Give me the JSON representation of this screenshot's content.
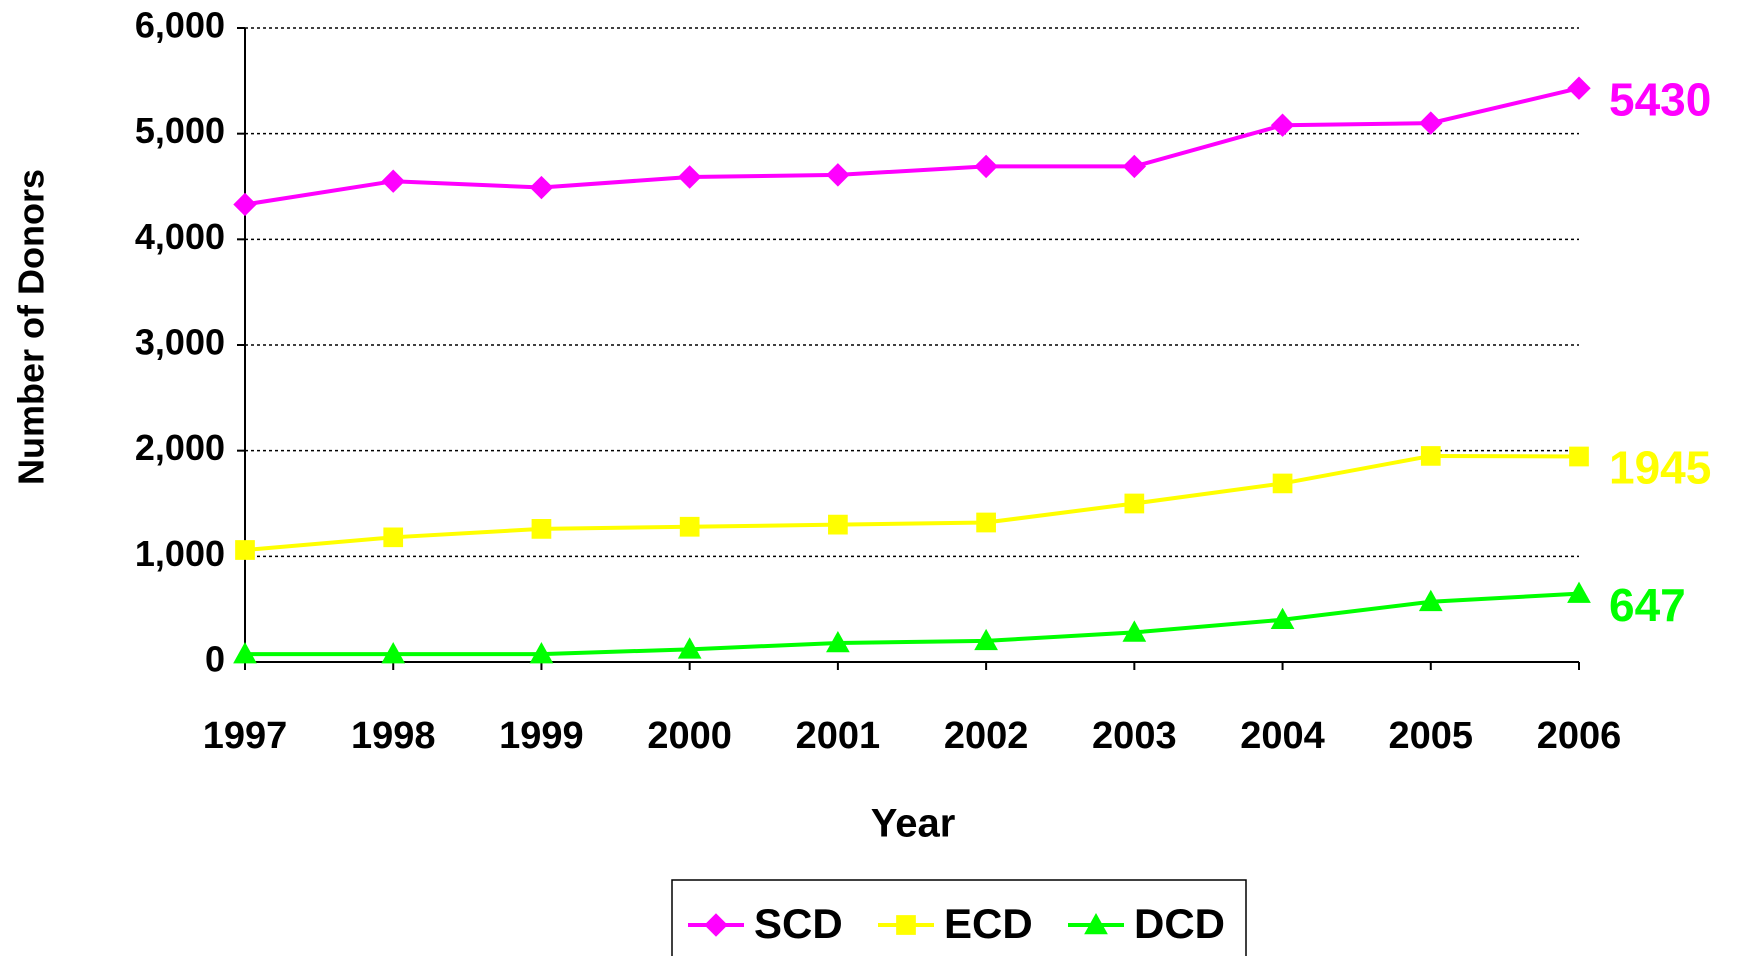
{
  "chart_data": {
    "type": "line",
    "x_label": "Year",
    "y_label": "Number of Donors",
    "categories": [
      "1997",
      "1998",
      "1999",
      "2000",
      "2001",
      "2002",
      "2003",
      "2004",
      "2005",
      "2006"
    ],
    "series": [
      {
        "name": "SCD",
        "color": "#ff00ff",
        "marker": "diamond",
        "values": [
          4330,
          4550,
          4490,
          4590,
          4610,
          4690,
          4690,
          5080,
          5100,
          5430
        ]
      },
      {
        "name": "ECD",
        "color": "#ffff00",
        "marker": "square",
        "values": [
          1060,
          1180,
          1260,
          1280,
          1300,
          1320,
          1500,
          1690,
          1950,
          1945
        ]
      },
      {
        "name": "DCD",
        "color": "#00ff00",
        "marker": "triangle",
        "values": [
          75,
          75,
          75,
          120,
          180,
          200,
          280,
          400,
          570,
          647
        ]
      }
    ],
    "ylim": [
      0,
      6000
    ],
    "yticks": [
      {
        "value": 0,
        "label": "0"
      },
      {
        "value": 1000,
        "label": "1,000"
      },
      {
        "value": 2000,
        "label": "2,000"
      },
      {
        "value": 3000,
        "label": "3,000"
      },
      {
        "value": 4000,
        "label": "4,000"
      },
      {
        "value": 5000,
        "label": "5,000"
      },
      {
        "value": 6000,
        "label": "6,000"
      }
    ],
    "grid": true,
    "legend": "bottom"
  }
}
